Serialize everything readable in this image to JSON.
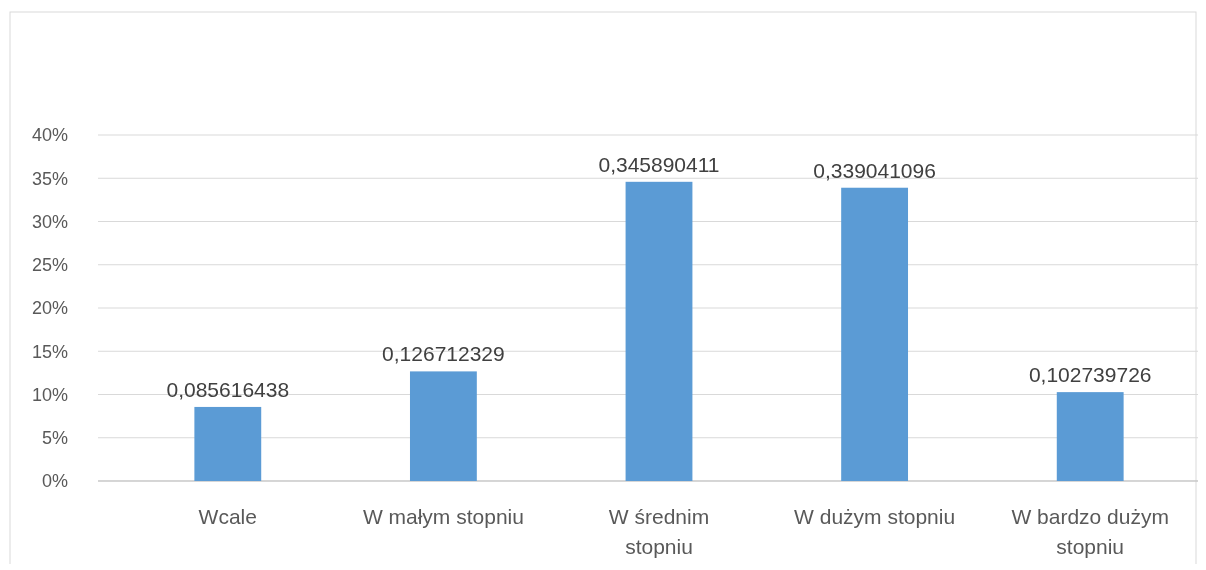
{
  "chart_data": {
    "type": "bar",
    "categories": [
      "Wcale",
      "W małym stopniu",
      "W średnim stopniu",
      "W dużym stopniu",
      "W bardzo dużym stopniu"
    ],
    "values": [
      0.085616438,
      0.126712329,
      0.345890411,
      0.339041096,
      0.102739726
    ],
    "value_labels": [
      "0,085616438",
      "0,126712329",
      "0,345890411",
      "0,339041096",
      "0,102739726"
    ],
    "color": "#5b9bd5",
    "ylim": [
      0,
      0.4
    ],
    "yticks": [
      {
        "value": 0,
        "label": "0%"
      },
      {
        "value": 0.05,
        "label": "5%"
      },
      {
        "value": 0.1,
        "label": "10%"
      },
      {
        "value": 0.15,
        "label": "15%"
      },
      {
        "value": 0.2,
        "label": "20%"
      },
      {
        "value": 0.25,
        "label": "25%"
      },
      {
        "value": 0.3,
        "label": "30%"
      },
      {
        "value": 0.35,
        "label": "35%"
      },
      {
        "value": 0.4,
        "label": "40%"
      }
    ],
    "grid": "y"
  }
}
